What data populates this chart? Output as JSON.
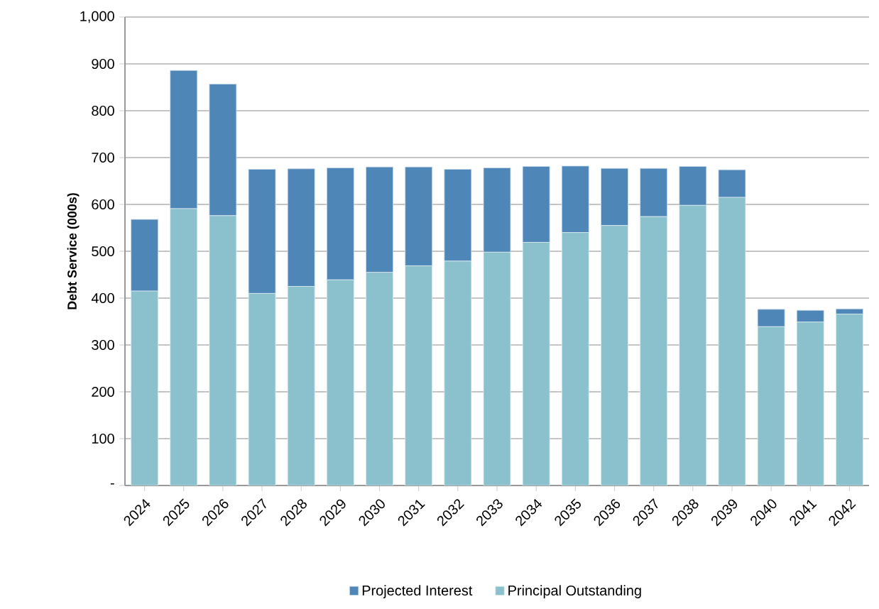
{
  "chart_data": {
    "type": "bar",
    "stacked": true,
    "ylabel": "Debt Service (000s)",
    "categories": [
      "2024",
      "2025",
      "2026",
      "2027",
      "2028",
      "2029",
      "2030",
      "2031",
      "2032",
      "2033",
      "2034",
      "2035",
      "2036",
      "2037",
      "2038",
      "2039",
      "2040",
      "2041",
      "2042"
    ],
    "series": [
      {
        "name": "Principal Outstanding",
        "color": "#8bc0cd",
        "values": [
          415,
          591,
          576,
          410,
          425,
          439,
          455,
          469,
          479,
          498,
          519,
          540,
          555,
          574,
          598,
          615,
          339,
          349,
          366
        ]
      },
      {
        "name": "Projected Interest",
        "color": "#4f86b8",
        "values": [
          153,
          295,
          281,
          265,
          251,
          239,
          225,
          211,
          196,
          180,
          162,
          142,
          122,
          103,
          83,
          59,
          37,
          25,
          11
        ]
      }
    ],
    "ylim": [
      0,
      1000
    ],
    "yticks": [
      {
        "value": 0,
        "label": "-"
      },
      100,
      200,
      300,
      400,
      500,
      600,
      700,
      800,
      900,
      {
        "value": 1000,
        "label": "1,000"
      }
    ],
    "grid": "y",
    "legend": "bottom"
  }
}
